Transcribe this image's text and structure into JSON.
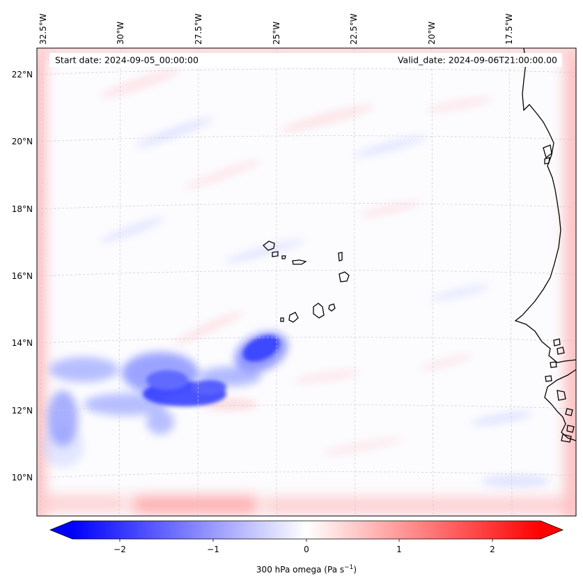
{
  "map": {
    "start_date_label": "Start date: 2024-09-05_00:00:00",
    "valid_date_label": "Valid_date: 2024-09-06T21:00:00.00",
    "lon_labels": [
      "32.5°W",
      "30°W",
      "27.5°W",
      "25°W",
      "22.5°W",
      "20°W",
      "17.5°W"
    ],
    "lat_labels": [
      "22°N",
      "20°N",
      "18°N",
      "16°N",
      "14°N",
      "12°N",
      "10°N"
    ],
    "field": "300 hPa omega",
    "gridlines": true
  },
  "colorbar": {
    "label_main": "300 hPa omega (Pa s",
    "label_exp": "−1",
    "label_close": ")",
    "ticks": [
      "−2",
      "−1",
      "0",
      "1",
      "2"
    ],
    "cmap": "bwr",
    "colors": {
      "min": "#0000ff",
      "mid": "#ffffff",
      "max": "#ff0000"
    }
  }
}
